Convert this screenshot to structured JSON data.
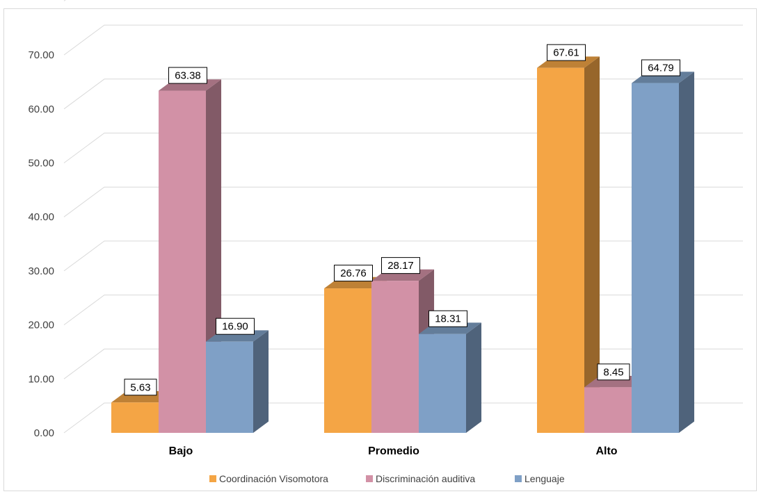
{
  "chart_data": {
    "type": "bar",
    "categories": [
      "Bajo",
      "Promedio",
      "Alto"
    ],
    "series": [
      {
        "name": "Coordinación Visomotora",
        "values": [
          5.63,
          26.76,
          67.61
        ],
        "color": "#f4a545"
      },
      {
        "name": "Discriminación auditiva",
        "values": [
          63.38,
          28.17,
          8.45
        ],
        "color": "#d291a6"
      },
      {
        "name": "Lenguaje",
        "values": [
          16.9,
          18.31,
          64.79
        ],
        "color": "#7fa0c6"
      }
    ],
    "y_tick_labels": [
      "0.00",
      "10.00",
      "20.00",
      "30.00",
      "40.00",
      "50.00",
      "60.00",
      "70.00"
    ],
    "value_labels": [
      [
        "5.63",
        "26.76",
        "67.61"
      ],
      [
        "63.38",
        "28.17",
        "8.45"
      ],
      [
        "16.90",
        "18.31",
        "64.79"
      ]
    ],
    "ylim": [
      0,
      70
    ],
    "title": "",
    "xlabel": "",
    "ylabel": "",
    "grid": true,
    "three_d": true,
    "legend_position": "bottom"
  }
}
